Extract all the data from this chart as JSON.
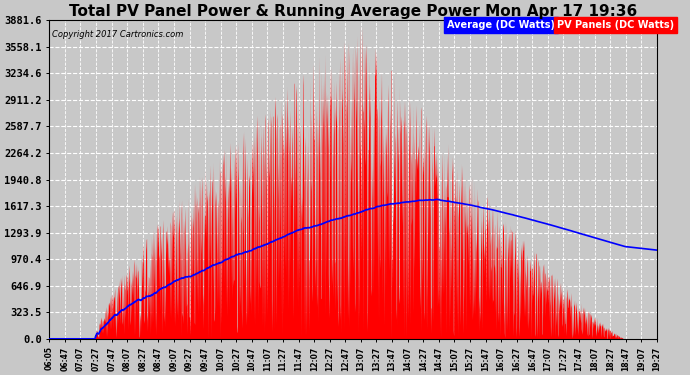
{
  "title": "Total PV Panel Power & Running Average Power Mon Apr 17 19:36",
  "copyright": "Copyright 2017 Cartronics.com",
  "legend_avg": "Average (DC Watts)",
  "legend_pv": "PV Panels (DC Watts)",
  "yticks": [
    0.0,
    323.5,
    646.9,
    970.4,
    1293.9,
    1617.3,
    1940.8,
    2264.2,
    2587.7,
    2911.2,
    3234.6,
    3558.1,
    3881.6
  ],
  "xtick_labels": [
    "06:05",
    "06:47",
    "07:07",
    "07:27",
    "07:47",
    "08:07",
    "08:27",
    "08:47",
    "09:07",
    "09:27",
    "09:47",
    "10:07",
    "10:27",
    "10:47",
    "11:07",
    "11:27",
    "11:47",
    "12:07",
    "12:27",
    "12:47",
    "13:07",
    "13:27",
    "13:47",
    "14:07",
    "14:27",
    "14:47",
    "15:07",
    "15:27",
    "15:47",
    "16:07",
    "16:27",
    "16:47",
    "17:07",
    "17:27",
    "17:47",
    "18:07",
    "18:27",
    "18:47",
    "19:07",
    "19:27"
  ],
  "bg_color": "#c8c8c8",
  "plot_bg_color": "#c8c8c8",
  "grid_color": "white",
  "bar_color": "red",
  "line_color": "blue",
  "title_fontsize": 11,
  "ymax": 3881.6,
  "ymin": 0.0,
  "figwidth": 6.9,
  "figheight": 3.75,
  "dpi": 100
}
